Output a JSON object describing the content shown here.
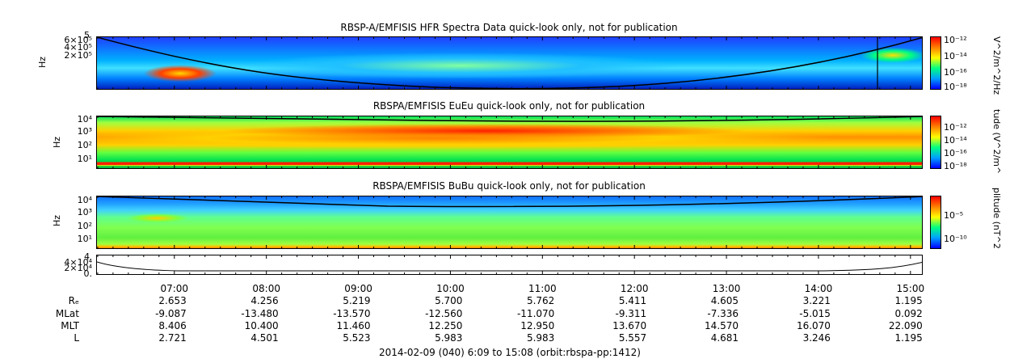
{
  "footer": "2014-02-09 (040) 6:09 to 15:08 (orbit:rbspa-pp:1412)",
  "panels": {
    "hfr": {
      "title": "RBSP-A/EMFISIS  HFR Spectra Data quick-look only, not for publication",
      "ylabel": "Hz",
      "yticks": [
        "6×10⁵",
        "4×10⁵",
        "2×10⁵"
      ],
      "ytop": "5",
      "cbar_label": "V^2/m^2/Hz",
      "cbar_ticks": [
        "10⁻¹²",
        "10⁻¹⁴",
        "10⁻¹⁶",
        "10⁻¹⁸"
      ]
    },
    "eueu": {
      "title": "RBSPA/EMFISIS  EuEu quick-look only, not for publication",
      "ylabel": "Hz",
      "yticks": [
        "10⁴",
        "10³",
        "10²",
        "10¹"
      ],
      "cbar_label": "tude (V^2/m^",
      "cbar_ticks": [
        "10⁻¹²",
        "10⁻¹⁴",
        "10⁻¹⁶",
        "10⁻¹⁸"
      ]
    },
    "bubu": {
      "title": "RBSPA/EMFISIS  BuBu quick-look only, not for publication",
      "ylabel": "Hz",
      "yticks": [
        "10⁴",
        "10³",
        "10²",
        "10¹"
      ],
      "cbar_label": "plitude (nT^2",
      "cbar_ticks": [
        "10⁻⁵",
        "10⁻¹⁰"
      ]
    },
    "alt": {
      "yticks": [
        "4×10⁴",
        "2×10⁴",
        "0."
      ],
      "ytop": "4"
    }
  },
  "chart_data": {
    "type": "heatmap",
    "x_label_rows": [
      {
        "name": "",
        "values": [
          "07:00",
          "08:00",
          "09:00",
          "10:00",
          "11:00",
          "12:00",
          "13:00",
          "14:00",
          "15:00"
        ]
      },
      {
        "name": "Rₑ",
        "values": [
          "2.653",
          "4.256",
          "5.219",
          "5.700",
          "5.762",
          "5.411",
          "4.605",
          "3.221",
          "1.195"
        ]
      },
      {
        "name": "MLat",
        "values": [
          "-9.087",
          "-13.480",
          "-13.570",
          "-12.560",
          "-11.070",
          "-9.311",
          "-7.336",
          "-5.015",
          "0.092"
        ]
      },
      {
        "name": "MLT",
        "values": [
          "8.406",
          "10.400",
          "11.460",
          "12.250",
          "12.950",
          "13.670",
          "14.570",
          "16.070",
          "22.090"
        ]
      },
      {
        "name": "L",
        "values": [
          "2.721",
          "4.501",
          "5.523",
          "5.983",
          "5.983",
          "5.557",
          "4.681",
          "3.246",
          "1.195"
        ]
      }
    ],
    "time_range": [
      "06:09",
      "15:08"
    ],
    "colorbar_colors": [
      "#0000ff",
      "#00a0ff",
      "#00ff80",
      "#ffff00",
      "#ff8000",
      "#ff0000"
    ]
  }
}
